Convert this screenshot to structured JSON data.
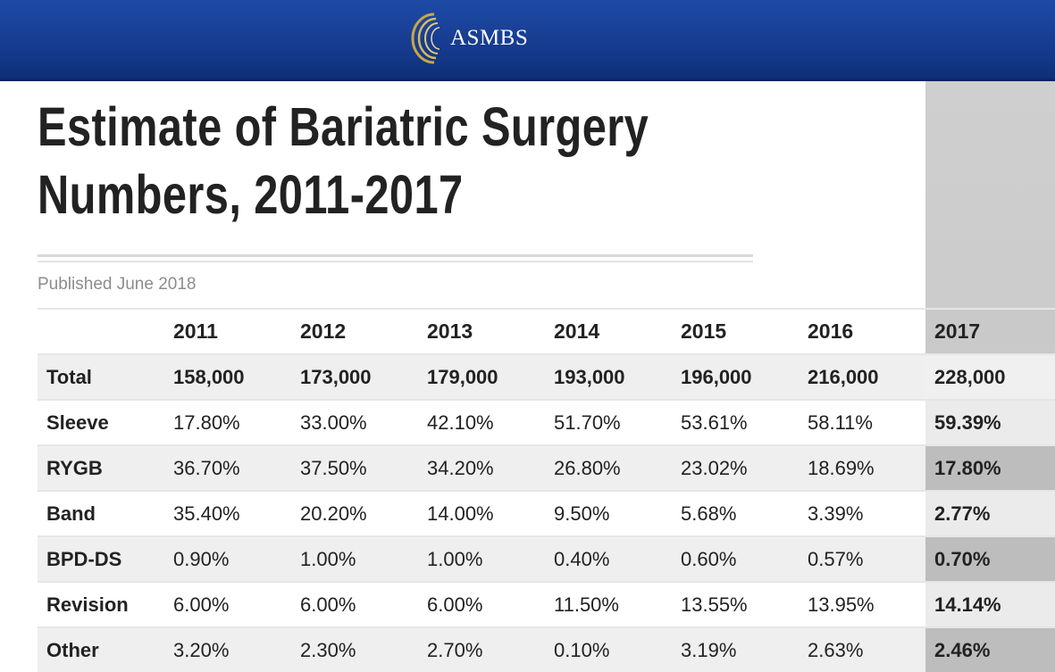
{
  "header": {
    "logo_text": "ASMBS",
    "logo_icon": "concentric-arcs-logo",
    "colors": {
      "bar": "#163b8e",
      "logo_arc": "#c9a646"
    }
  },
  "title_line1": "Estimate of Bariatric Surgery",
  "title_line2": "Numbers, 2011-2017",
  "published": "Published June 2018",
  "table": {
    "columns": [
      "",
      "2011",
      "2012",
      "2013",
      "2014",
      "2015",
      "2016",
      "2017"
    ],
    "rows": [
      {
        "label": "Total",
        "values": [
          "158,000",
          "173,000",
          "179,000",
          "193,000",
          "196,000",
          "216,000",
          "228,000"
        ]
      },
      {
        "label": "Sleeve",
        "values": [
          "17.80%",
          "33.00%",
          "42.10%",
          "51.70%",
          "53.61%",
          "58.11%",
          "59.39%"
        ]
      },
      {
        "label": "RYGB",
        "values": [
          "36.70%",
          "37.50%",
          "34.20%",
          "26.80%",
          "23.02%",
          "18.69%",
          "17.80%"
        ]
      },
      {
        "label": "Band",
        "values": [
          "35.40%",
          "20.20%",
          "14.00%",
          "9.50%",
          "5.68%",
          "3.39%",
          "2.77%"
        ]
      },
      {
        "label": "BPD-DS",
        "values": [
          "0.90%",
          "1.00%",
          "1.00%",
          "0.40%",
          "0.60%",
          "0.57%",
          "0.70%"
        ]
      },
      {
        "label": "Revision",
        "values": [
          "6.00%",
          "6.00%",
          "6.00%",
          "11.50%",
          "13.55%",
          "13.95%",
          "14.14%"
        ]
      },
      {
        "label": "Other",
        "values": [
          "3.20%",
          "2.30%",
          "2.70%",
          "0.10%",
          "3.19%",
          "2.63%",
          "2.46%"
        ]
      }
    ]
  }
}
